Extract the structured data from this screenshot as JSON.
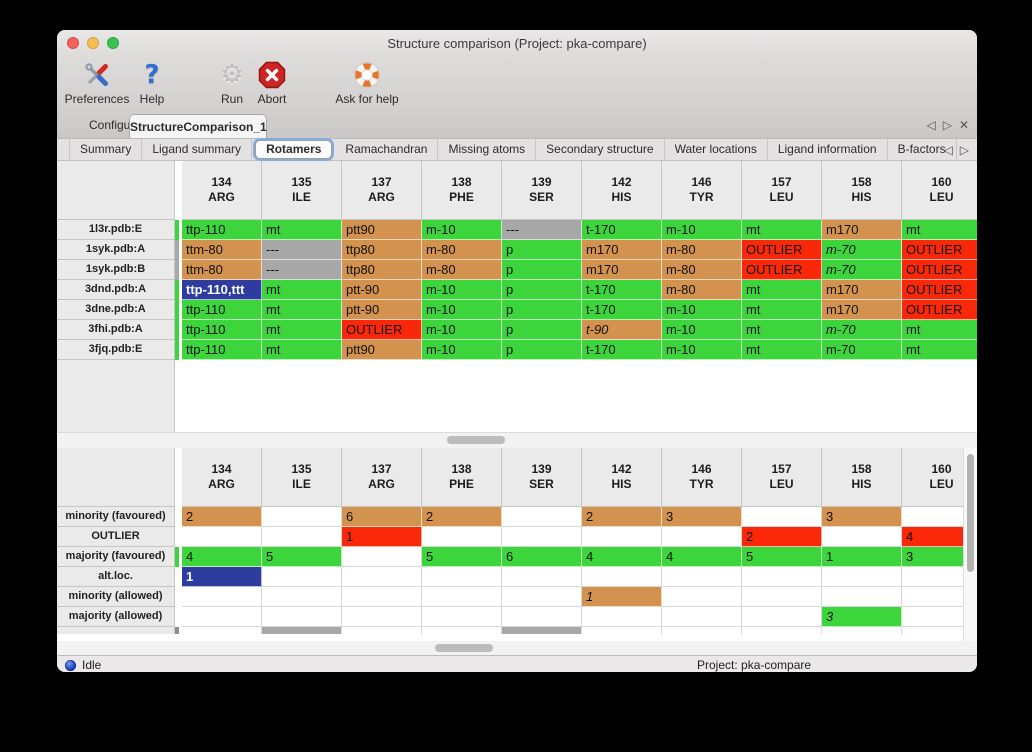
{
  "window": {
    "title": "Structure comparison (Project: pka-compare)"
  },
  "colors": {
    "green": "#3cd63c",
    "tan": "#d3924d",
    "red": "#fa2808",
    "gray": "#a7a7a7",
    "blue": "#2d3c9e",
    "darkgray": "#8f8f8f"
  },
  "toolbar": {
    "buttons": [
      {
        "label": "Preferences",
        "icon": "tools-icon"
      },
      {
        "label": "Help",
        "icon": "help-icon"
      },
      {
        "label": "Run",
        "icon": "gear-icon"
      },
      {
        "label": "Abort",
        "icon": "abort-icon"
      },
      {
        "label": "Ask for help",
        "icon": "lifebuoy-icon"
      }
    ]
  },
  "tab_bar": {
    "tabs": [
      {
        "label": "Configure",
        "active": false
      },
      {
        "label": "StructureComparison_1",
        "active": true
      }
    ],
    "nav_left": "◁",
    "nav_right": "▷",
    "close": "✕"
  },
  "subtab_bar": {
    "tabs": [
      {
        "label": "Summary"
      },
      {
        "label": "Ligand summary"
      },
      {
        "label": "Rotamers",
        "active": true
      },
      {
        "label": "Ramachandran"
      },
      {
        "label": "Missing atoms"
      },
      {
        "label": "Secondary structure"
      },
      {
        "label": "Water locations"
      },
      {
        "label": "Ligand information"
      },
      {
        "label": "B-factors"
      }
    ],
    "nav_left": "◁",
    "nav_right": "▷"
  },
  "columns": [
    {
      "num": "134",
      "res": "ARG"
    },
    {
      "num": "135",
      "res": "ILE"
    },
    {
      "num": "137",
      "res": "ARG"
    },
    {
      "num": "138",
      "res": "PHE"
    },
    {
      "num": "139",
      "res": "SER"
    },
    {
      "num": "142",
      "res": "HIS"
    },
    {
      "num": "146",
      "res": "TYR"
    },
    {
      "num": "157",
      "res": "LEU"
    },
    {
      "num": "158",
      "res": "HIS"
    },
    {
      "num": "160",
      "res": "LEU"
    }
  ],
  "top_table": {
    "rows": [
      {
        "label": "1l3r.pdb:E",
        "edge": "green",
        "cells": [
          [
            "ttp-110",
            "green"
          ],
          [
            "mt",
            "green"
          ],
          [
            "ptt90",
            "tan"
          ],
          [
            "m-10",
            "green"
          ],
          [
            "---",
            "gray"
          ],
          [
            "t-170",
            "green"
          ],
          [
            "m-10",
            "green"
          ],
          [
            "mt",
            "green"
          ],
          [
            "m170",
            "tan"
          ],
          [
            "mt",
            "green"
          ]
        ]
      },
      {
        "label": "1syk.pdb:A",
        "edge": "gray",
        "cells": [
          [
            "ttm-80",
            "tan"
          ],
          [
            "---",
            "gray"
          ],
          [
            "ttp80",
            "tan"
          ],
          [
            "m-80",
            "tan"
          ],
          [
            "p",
            "green"
          ],
          [
            "m170",
            "tan"
          ],
          [
            "m-80",
            "tan"
          ],
          [
            "OUTLIER",
            "red"
          ],
          [
            "m-70",
            "green",
            "i"
          ],
          [
            "OUTLIER",
            "red"
          ]
        ]
      },
      {
        "label": "1syk.pdb:B",
        "edge": "gray",
        "cells": [
          [
            "ttm-80",
            "tan"
          ],
          [
            "---",
            "gray"
          ],
          [
            "ttp80",
            "tan"
          ],
          [
            "m-80",
            "tan"
          ],
          [
            "p",
            "green"
          ],
          [
            "m170",
            "tan"
          ],
          [
            "m-80",
            "tan"
          ],
          [
            "OUTLIER",
            "red"
          ],
          [
            "m-70",
            "green",
            "i"
          ],
          [
            "OUTLIER",
            "red"
          ]
        ]
      },
      {
        "label": "3dnd.pdb:A",
        "edge": "green",
        "cells": [
          [
            "ttp-110,ttt",
            "blue"
          ],
          [
            "mt",
            "green"
          ],
          [
            "ptt-90",
            "tan"
          ],
          [
            "m-10",
            "green"
          ],
          [
            "p",
            "green"
          ],
          [
            "t-170",
            "green"
          ],
          [
            "m-80",
            "tan"
          ],
          [
            "mt",
            "green"
          ],
          [
            "m170",
            "tan"
          ],
          [
            "OUTLIER",
            "red"
          ]
        ]
      },
      {
        "label": "3dne.pdb:A",
        "edge": "green",
        "cells": [
          [
            "ttp-110",
            "green"
          ],
          [
            "mt",
            "green"
          ],
          [
            "ptt-90",
            "tan"
          ],
          [
            "m-10",
            "green"
          ],
          [
            "p",
            "green"
          ],
          [
            "t-170",
            "green"
          ],
          [
            "m-10",
            "green"
          ],
          [
            "mt",
            "green"
          ],
          [
            "m170",
            "tan"
          ],
          [
            "OUTLIER",
            "red"
          ]
        ]
      },
      {
        "label": "3fhi.pdb:A",
        "edge": "green",
        "cells": [
          [
            "ttp-110",
            "green"
          ],
          [
            "mt",
            "green"
          ],
          [
            "OUTLIER",
            "red"
          ],
          [
            "m-10",
            "green"
          ],
          [
            "p",
            "green"
          ],
          [
            "t-90",
            "tan",
            "i"
          ],
          [
            "m-10",
            "green"
          ],
          [
            "mt",
            "green"
          ],
          [
            "m-70",
            "green",
            "i"
          ],
          [
            "mt",
            "green"
          ]
        ]
      },
      {
        "label": "3fjq.pdb:E",
        "edge": "green",
        "cells": [
          [
            "ttp-110",
            "green"
          ],
          [
            "mt",
            "green"
          ],
          [
            "ptt90",
            "tan"
          ],
          [
            "m-10",
            "green"
          ],
          [
            "p",
            "green"
          ],
          [
            "t-170",
            "green"
          ],
          [
            "m-10",
            "green"
          ],
          [
            "mt",
            "green"
          ],
          [
            "m-70",
            "green"
          ],
          [
            "mt",
            "green"
          ]
        ]
      }
    ]
  },
  "bottom_table": {
    "rows": [
      {
        "label": "minority (favoured)",
        "edge": "",
        "cells": [
          [
            "2",
            "tan"
          ],
          [
            "",
            ""
          ],
          [
            "6",
            "tan"
          ],
          [
            "2",
            "tan"
          ],
          [
            "",
            ""
          ],
          [
            "2",
            "tan"
          ],
          [
            "3",
            "tan"
          ],
          [
            "",
            ""
          ],
          [
            "3",
            "tan"
          ],
          [
            "",
            ""
          ]
        ]
      },
      {
        "label": "OUTLIER",
        "edge": "",
        "cells": [
          [
            "",
            ""
          ],
          [
            "",
            ""
          ],
          [
            "1",
            "red"
          ],
          [
            "",
            ""
          ],
          [
            "",
            ""
          ],
          [
            "",
            ""
          ],
          [
            "",
            ""
          ],
          [
            "2",
            "red"
          ],
          [
            "",
            ""
          ],
          [
            "4",
            "red"
          ]
        ]
      },
      {
        "label": "majority (favoured)",
        "edge": "green",
        "cells": [
          [
            "4",
            "green"
          ],
          [
            "5",
            "green"
          ],
          [
            "",
            ""
          ],
          [
            "5",
            "green"
          ],
          [
            "6",
            "green"
          ],
          [
            "4",
            "green"
          ],
          [
            "4",
            "green"
          ],
          [
            "5",
            "green"
          ],
          [
            "1",
            "green"
          ],
          [
            "3",
            "green"
          ]
        ]
      },
      {
        "label": "alt.loc.",
        "edge": "",
        "cells": [
          [
            "1",
            "blue"
          ],
          [
            "",
            ""
          ],
          [
            "",
            ""
          ],
          [
            "",
            ""
          ],
          [
            "",
            ""
          ],
          [
            "",
            ""
          ],
          [
            "",
            ""
          ],
          [
            "",
            ""
          ],
          [
            "",
            ""
          ],
          [
            "",
            ""
          ]
        ]
      },
      {
        "label": "minority (allowed)",
        "edge": "",
        "cells": [
          [
            "",
            ""
          ],
          [
            "",
            ""
          ],
          [
            "",
            ""
          ],
          [
            "",
            ""
          ],
          [
            "",
            ""
          ],
          [
            "1",
            "tan",
            "i"
          ],
          [
            "",
            ""
          ],
          [
            "",
            ""
          ],
          [
            "",
            ""
          ],
          [
            "",
            ""
          ]
        ]
      },
      {
        "label": "majority (allowed)",
        "edge": "",
        "cells": [
          [
            "",
            ""
          ],
          [
            "",
            ""
          ],
          [
            "",
            ""
          ],
          [
            "",
            ""
          ],
          [
            "",
            ""
          ],
          [
            "",
            ""
          ],
          [
            "",
            ""
          ],
          [
            "",
            ""
          ],
          [
            "3",
            "green",
            "i"
          ],
          [
            "",
            ""
          ]
        ]
      }
    ],
    "partial_row": {
      "edge": "darkgray",
      "cells": [
        [
          "",
          ""
        ],
        [
          "",
          "gray"
        ],
        [
          "",
          ""
        ],
        [
          "",
          ""
        ],
        [
          "",
          "gray"
        ],
        [
          "",
          ""
        ],
        [
          "",
          ""
        ],
        [
          "",
          ""
        ],
        [
          "",
          ""
        ],
        [
          "",
          ""
        ]
      ]
    }
  },
  "statusbar": {
    "state": "Idle",
    "project": "Project: pka-compare"
  }
}
